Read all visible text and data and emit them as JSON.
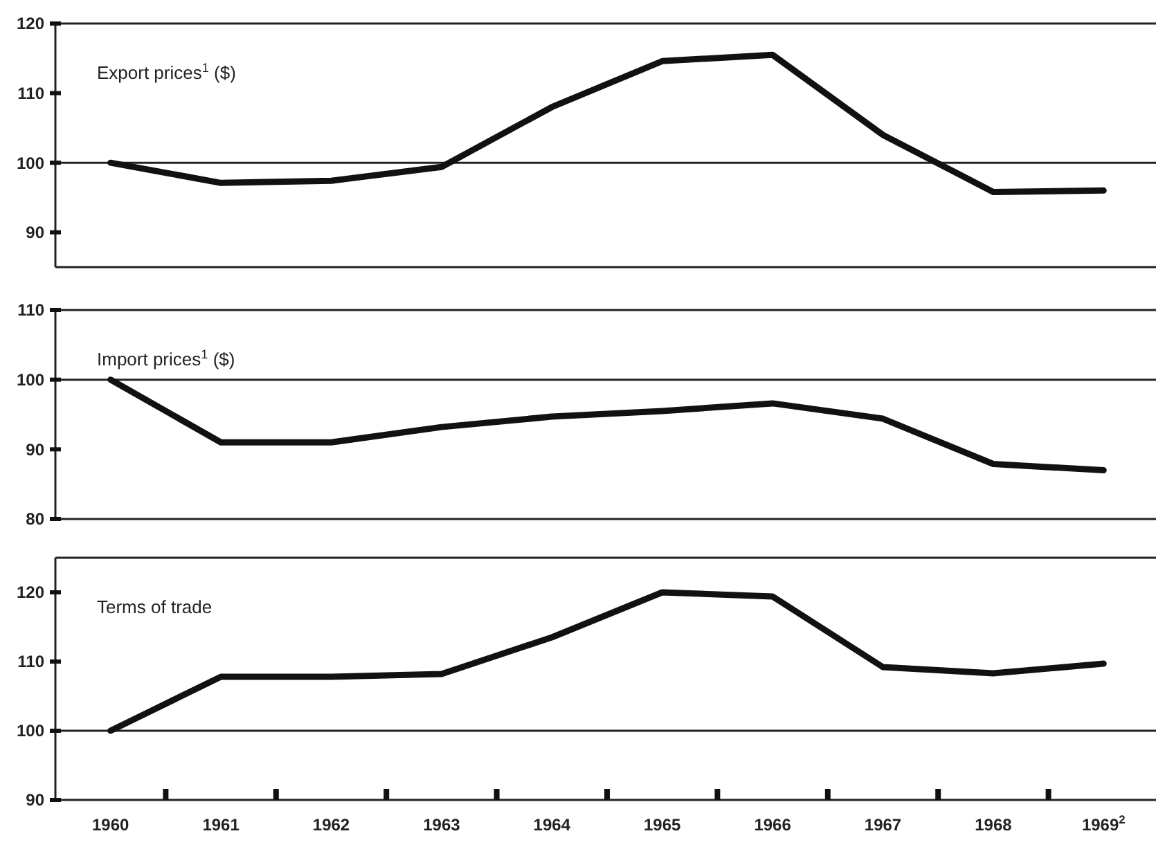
{
  "chart_data": [
    {
      "type": "line",
      "title": "Export prices$^{1}$ ($)",
      "x": [
        1960,
        1961,
        1962,
        1963,
        1964,
        1965,
        1966,
        1967,
        1968,
        1969
      ],
      "series": [
        {
          "color": "#111111",
          "values": [
            100,
            97.1,
            97.4,
            99.4,
            108,
            114.6,
            115.5,
            104,
            95.8,
            96
          ]
        }
      ],
      "xlim": [
        1959.5,
        1969.5
      ],
      "ylim": [
        85,
        120
      ],
      "yticks": [
        90,
        100,
        110,
        120
      ],
      "ref_lines": [
        {
          "axis": "y",
          "value": 100
        }
      ],
      "tick_labels": "y",
      "marker": "none",
      "line_style": "solid"
    },
    {
      "type": "line",
      "title": "Import prices$^{1}$ ($)",
      "x": [
        1960,
        1961,
        1962,
        1963,
        1964,
        1965,
        1966,
        1967,
        1968,
        1969
      ],
      "series": [
        {
          "color": "#111111",
          "values": [
            100,
            91,
            91,
            93.2,
            94.7,
            95.5,
            96.6,
            94.4,
            87.9,
            87
          ]
        }
      ],
      "xlim": [
        1959.5,
        1969.5
      ],
      "ylim": [
        80,
        110
      ],
      "yticks": [
        80,
        90,
        100,
        110
      ],
      "ref_lines": [
        {
          "axis": "y",
          "value": 100
        }
      ],
      "tick_labels": "y",
      "marker": "none",
      "line_style": "solid"
    },
    {
      "type": "line",
      "title": "Terms of trade",
      "x": [
        1960,
        1961,
        1962,
        1963,
        1964,
        1965,
        1966,
        1967,
        1968,
        1969
      ],
      "series": [
        {
          "color": "#111111",
          "values": [
            100,
            107.8,
            107.8,
            108.2,
            113.5,
            120,
            119.4,
            109.2,
            108.3,
            109.7
          ]
        }
      ],
      "xlim": [
        1959.5,
        1969.5
      ],
      "xticks": [
        {
          "value": 1960,
          "label": "1960"
        },
        {
          "value": 1960.5,
          "label": null
        },
        {
          "value": 1961,
          "label": "1961"
        },
        {
          "value": 1961.5,
          "label": null
        },
        {
          "value": 1962,
          "label": "1962"
        },
        {
          "value": 1962.5,
          "label": null
        },
        {
          "value": 1963,
          "label": "1963"
        },
        {
          "value": 1963.5,
          "label": null
        },
        {
          "value": 1964,
          "label": "1964"
        },
        {
          "value": 1964.5,
          "label": null
        },
        {
          "value": 1965,
          "label": "1965"
        },
        {
          "value": 1965.5,
          "label": null
        },
        {
          "value": 1966,
          "label": "1966"
        },
        {
          "value": 1966.5,
          "label": null
        },
        {
          "value": 1967,
          "label": "1967"
        },
        {
          "value": 1967.5,
          "label": null
        },
        {
          "value": 1968,
          "label": "1968"
        },
        {
          "value": 1968.5,
          "label": null
        },
        {
          "value": 1969,
          "label": "1969$^{2}$"
        }
      ],
      "ylim": [
        90,
        125
      ],
      "yticks": [
        90,
        100,
        110,
        120
      ],
      "ref_lines": [
        {
          "axis": "y",
          "value": 100
        }
      ],
      "marker": "none",
      "line_style": "solid"
    }
  ]
}
